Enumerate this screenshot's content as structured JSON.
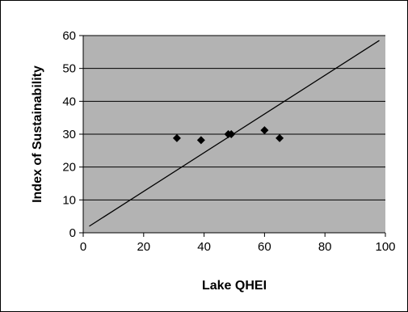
{
  "chart_data": {
    "type": "scatter",
    "title": "",
    "xlabel": "Lake QHEI",
    "ylabel": "Index of Sustainability",
    "xlim": [
      0,
      100
    ],
    "ylim": [
      0,
      60
    ],
    "xticks": [
      0,
      20,
      40,
      60,
      80,
      100
    ],
    "yticks": [
      0,
      10,
      20,
      30,
      40,
      50,
      60
    ],
    "grid": "horizontal",
    "legend": "none",
    "plot_background": "#b3b3b3",
    "points": [
      {
        "x": 31,
        "y": 28.8
      },
      {
        "x": 39,
        "y": 28.2
      },
      {
        "x": 48,
        "y": 30.0
      },
      {
        "x": 49,
        "y": 30.0
      },
      {
        "x": 60,
        "y": 31.2
      },
      {
        "x": 65,
        "y": 28.8
      }
    ],
    "reference_line": {
      "x": [
        2,
        98
      ],
      "y": [
        2,
        58.5
      ]
    }
  }
}
